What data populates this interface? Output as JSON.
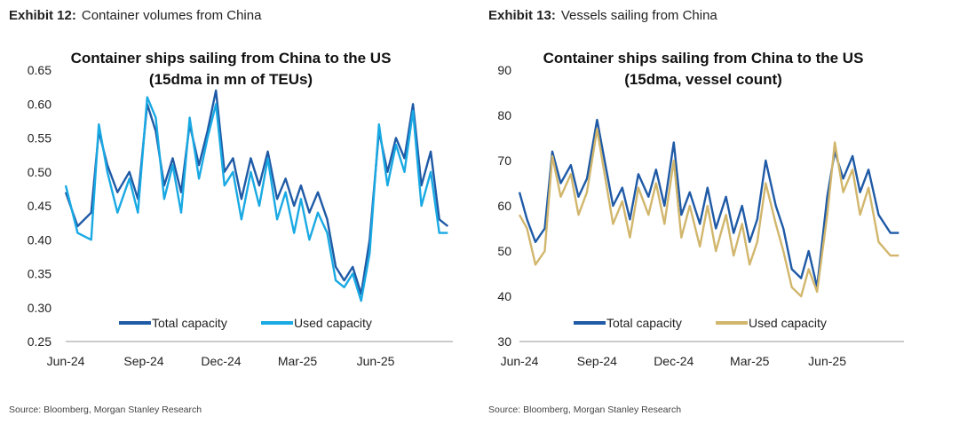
{
  "charts": [
    {
      "exhibit_label": "Exhibit 12:",
      "exhibit_title": "Container volumes from China",
      "source": "Source: Bloomberg, Morgan Stanley Research",
      "chart_data": {
        "type": "line",
        "title_line1": "Container ships sailing from China to the US",
        "title_line2": "(15dma in mn of TEUs)",
        "ylim": [
          0.25,
          0.65
        ],
        "yticks": [
          "0.25",
          "0.30",
          "0.35",
          "0.40",
          "0.45",
          "0.50",
          "0.55",
          "0.60",
          "0.65"
        ],
        "ytick_values": [
          0.25,
          0.3,
          0.35,
          0.4,
          0.45,
          0.5,
          0.55,
          0.6,
          0.65
        ],
        "xlim": [
          "2024-06-01",
          "2025-08-31"
        ],
        "xticks": [
          "Jun-24",
          "Sep-24",
          "Dec-24",
          "Mar-25",
          "Jun-25"
        ],
        "xtick_dates": [
          "2024-06-01",
          "2024-09-01",
          "2024-12-01",
          "2025-03-01",
          "2025-06-01"
        ],
        "legend_position": "bottom-center",
        "series": [
          {
            "name": "Total capacity",
            "color": "#1f5aa6",
            "points": [
              [
                "2024-06-01",
                0.47
              ],
              [
                "2024-06-15",
                0.42
              ],
              [
                "2024-07-01",
                0.44
              ],
              [
                "2024-07-10",
                0.56
              ],
              [
                "2024-07-20",
                0.51
              ],
              [
                "2024-08-01",
                0.47
              ],
              [
                "2024-08-15",
                0.5
              ],
              [
                "2024-08-25",
                0.46
              ],
              [
                "2024-09-05",
                0.6
              ],
              [
                "2024-09-15",
                0.56
              ],
              [
                "2024-09-25",
                0.48
              ],
              [
                "2024-10-05",
                0.52
              ],
              [
                "2024-10-15",
                0.47
              ],
              [
                "2024-10-25",
                0.57
              ],
              [
                "2024-11-05",
                0.51
              ],
              [
                "2024-11-15",
                0.56
              ],
              [
                "2024-11-25",
                0.62
              ],
              [
                "2024-12-05",
                0.5
              ],
              [
                "2024-12-15",
                0.52
              ],
              [
                "2024-12-25",
                0.46
              ],
              [
                "2025-01-05",
                0.52
              ],
              [
                "2025-01-15",
                0.48
              ],
              [
                "2025-01-25",
                0.53
              ],
              [
                "2025-02-05",
                0.46
              ],
              [
                "2025-02-15",
                0.49
              ],
              [
                "2025-02-25",
                0.45
              ],
              [
                "2025-03-05",
                0.48
              ],
              [
                "2025-03-15",
                0.44
              ],
              [
                "2025-03-25",
                0.47
              ],
              [
                "2025-04-05",
                0.43
              ],
              [
                "2025-04-15",
                0.36
              ],
              [
                "2025-04-25",
                0.34
              ],
              [
                "2025-05-05",
                0.36
              ],
              [
                "2025-05-15",
                0.32
              ],
              [
                "2025-05-25",
                0.4
              ],
              [
                "2025-06-05",
                0.56
              ],
              [
                "2025-06-15",
                0.5
              ],
              [
                "2025-06-25",
                0.55
              ],
              [
                "2025-07-05",
                0.52
              ],
              [
                "2025-07-15",
                0.6
              ],
              [
                "2025-07-25",
                0.48
              ],
              [
                "2025-08-05",
                0.53
              ],
              [
                "2025-08-15",
                0.43
              ],
              [
                "2025-08-25",
                0.42
              ]
            ]
          },
          {
            "name": "Used capacity",
            "color": "#19a9e3",
            "points": [
              [
                "2024-06-01",
                0.48
              ],
              [
                "2024-06-15",
                0.41
              ],
              [
                "2024-07-01",
                0.4
              ],
              [
                "2024-07-10",
                0.57
              ],
              [
                "2024-07-20",
                0.5
              ],
              [
                "2024-08-01",
                0.44
              ],
              [
                "2024-08-15",
                0.49
              ],
              [
                "2024-08-25",
                0.44
              ],
              [
                "2024-09-05",
                0.61
              ],
              [
                "2024-09-15",
                0.58
              ],
              [
                "2024-09-25",
                0.46
              ],
              [
                "2024-10-05",
                0.51
              ],
              [
                "2024-10-15",
                0.44
              ],
              [
                "2024-10-25",
                0.58
              ],
              [
                "2024-11-05",
                0.49
              ],
              [
                "2024-11-15",
                0.55
              ],
              [
                "2024-11-25",
                0.6
              ],
              [
                "2024-12-05",
                0.48
              ],
              [
                "2024-12-15",
                0.5
              ],
              [
                "2024-12-25",
                0.43
              ],
              [
                "2025-01-05",
                0.5
              ],
              [
                "2025-01-15",
                0.45
              ],
              [
                "2025-01-25",
                0.52
              ],
              [
                "2025-02-05",
                0.43
              ],
              [
                "2025-02-15",
                0.47
              ],
              [
                "2025-02-25",
                0.41
              ],
              [
                "2025-03-05",
                0.46
              ],
              [
                "2025-03-15",
                0.4
              ],
              [
                "2025-03-25",
                0.44
              ],
              [
                "2025-04-05",
                0.41
              ],
              [
                "2025-04-15",
                0.34
              ],
              [
                "2025-04-25",
                0.33
              ],
              [
                "2025-05-05",
                0.35
              ],
              [
                "2025-05-15",
                0.31
              ],
              [
                "2025-05-25",
                0.38
              ],
              [
                "2025-06-05",
                0.57
              ],
              [
                "2025-06-15",
                0.48
              ],
              [
                "2025-06-25",
                0.54
              ],
              [
                "2025-07-05",
                0.5
              ],
              [
                "2025-07-15",
                0.59
              ],
              [
                "2025-07-25",
                0.45
              ],
              [
                "2025-08-05",
                0.5
              ],
              [
                "2025-08-15",
                0.41
              ],
              [
                "2025-08-25",
                0.41
              ]
            ]
          }
        ]
      }
    },
    {
      "exhibit_label": "Exhibit 13:",
      "exhibit_title": "Vessels sailing from China",
      "source": "Source: Bloomberg, Morgan Stanley Research",
      "chart_data": {
        "type": "line",
        "title_line1": "Container ships sailing from China to the US",
        "title_line2": "(15dma, vessel count)",
        "ylim": [
          30,
          90
        ],
        "yticks": [
          "30",
          "40",
          "50",
          "60",
          "70",
          "80",
          "90"
        ],
        "ytick_values": [
          30,
          40,
          50,
          60,
          70,
          80,
          90
        ],
        "xlim": [
          "2024-06-01",
          "2025-08-31"
        ],
        "xticks": [
          "Jun-24",
          "Sep-24",
          "Dec-24",
          "Mar-25",
          "Jun-25"
        ],
        "xtick_dates": [
          "2024-06-01",
          "2024-09-01",
          "2024-12-01",
          "2025-03-01",
          "2025-06-01"
        ],
        "legend_position": "bottom-center",
        "series": [
          {
            "name": "Total capacity",
            "color": "#1f5aa6",
            "points": [
              [
                "2024-06-01",
                63
              ],
              [
                "2024-06-10",
                57
              ],
              [
                "2024-06-20",
                52
              ],
              [
                "2024-07-01",
                55
              ],
              [
                "2024-07-10",
                72
              ],
              [
                "2024-07-20",
                65
              ],
              [
                "2024-08-01",
                69
              ],
              [
                "2024-08-10",
                62
              ],
              [
                "2024-08-20",
                66
              ],
              [
                "2024-09-01",
                79
              ],
              [
                "2024-09-10",
                70
              ],
              [
                "2024-09-20",
                60
              ],
              [
                "2024-10-01",
                64
              ],
              [
                "2024-10-10",
                57
              ],
              [
                "2024-10-20",
                67
              ],
              [
                "2024-11-01",
                62
              ],
              [
                "2024-11-10",
                68
              ],
              [
                "2024-11-20",
                60
              ],
              [
                "2024-12-01",
                74
              ],
              [
                "2024-12-10",
                58
              ],
              [
                "2024-12-20",
                63
              ],
              [
                "2025-01-01",
                56
              ],
              [
                "2025-01-10",
                64
              ],
              [
                "2025-01-20",
                55
              ],
              [
                "2025-02-01",
                62
              ],
              [
                "2025-02-10",
                54
              ],
              [
                "2025-02-20",
                60
              ],
              [
                "2025-03-01",
                52
              ],
              [
                "2025-03-10",
                57
              ],
              [
                "2025-03-20",
                70
              ],
              [
                "2025-04-01",
                60
              ],
              [
                "2025-04-10",
                55
              ],
              [
                "2025-04-20",
                46
              ],
              [
                "2025-05-01",
                44
              ],
              [
                "2025-05-10",
                50
              ],
              [
                "2025-05-20",
                42
              ],
              [
                "2025-06-01",
                62
              ],
              [
                "2025-06-10",
                72
              ],
              [
                "2025-06-20",
                66
              ],
              [
                "2025-07-01",
                71
              ],
              [
                "2025-07-10",
                63
              ],
              [
                "2025-07-20",
                68
              ],
              [
                "2025-08-01",
                58
              ],
              [
                "2025-08-15",
                54
              ],
              [
                "2025-08-25",
                54
              ]
            ]
          },
          {
            "name": "Used capacity",
            "color": "#d1b66c",
            "points": [
              [
                "2024-06-01",
                58
              ],
              [
                "2024-06-10",
                55
              ],
              [
                "2024-06-20",
                47
              ],
              [
                "2024-07-01",
                50
              ],
              [
                "2024-07-10",
                71
              ],
              [
                "2024-07-20",
                62
              ],
              [
                "2024-08-01",
                67
              ],
              [
                "2024-08-10",
                58
              ],
              [
                "2024-08-20",
                63
              ],
              [
                "2024-09-01",
                77
              ],
              [
                "2024-09-10",
                67
              ],
              [
                "2024-09-20",
                56
              ],
              [
                "2024-10-01",
                61
              ],
              [
                "2024-10-10",
                53
              ],
              [
                "2024-10-20",
                64
              ],
              [
                "2024-11-01",
                58
              ],
              [
                "2024-11-10",
                65
              ],
              [
                "2024-11-20",
                56
              ],
              [
                "2024-12-01",
                70
              ],
              [
                "2024-12-10",
                53
              ],
              [
                "2024-12-20",
                60
              ],
              [
                "2025-01-01",
                51
              ],
              [
                "2025-01-10",
                60
              ],
              [
                "2025-01-20",
                50
              ],
              [
                "2025-02-01",
                58
              ],
              [
                "2025-02-10",
                49
              ],
              [
                "2025-02-20",
                56
              ],
              [
                "2025-03-01",
                47
              ],
              [
                "2025-03-10",
                52
              ],
              [
                "2025-03-20",
                65
              ],
              [
                "2025-04-01",
                56
              ],
              [
                "2025-04-10",
                50
              ],
              [
                "2025-04-20",
                42
              ],
              [
                "2025-05-01",
                40
              ],
              [
                "2025-05-10",
                46
              ],
              [
                "2025-05-20",
                41
              ],
              [
                "2025-06-01",
                58
              ],
              [
                "2025-06-10",
                74
              ],
              [
                "2025-06-20",
                63
              ],
              [
                "2025-07-01",
                68
              ],
              [
                "2025-07-10",
                58
              ],
              [
                "2025-07-20",
                64
              ],
              [
                "2025-08-01",
                52
              ],
              [
                "2025-08-15",
                49
              ],
              [
                "2025-08-25",
                49
              ]
            ]
          }
        ]
      }
    }
  ]
}
